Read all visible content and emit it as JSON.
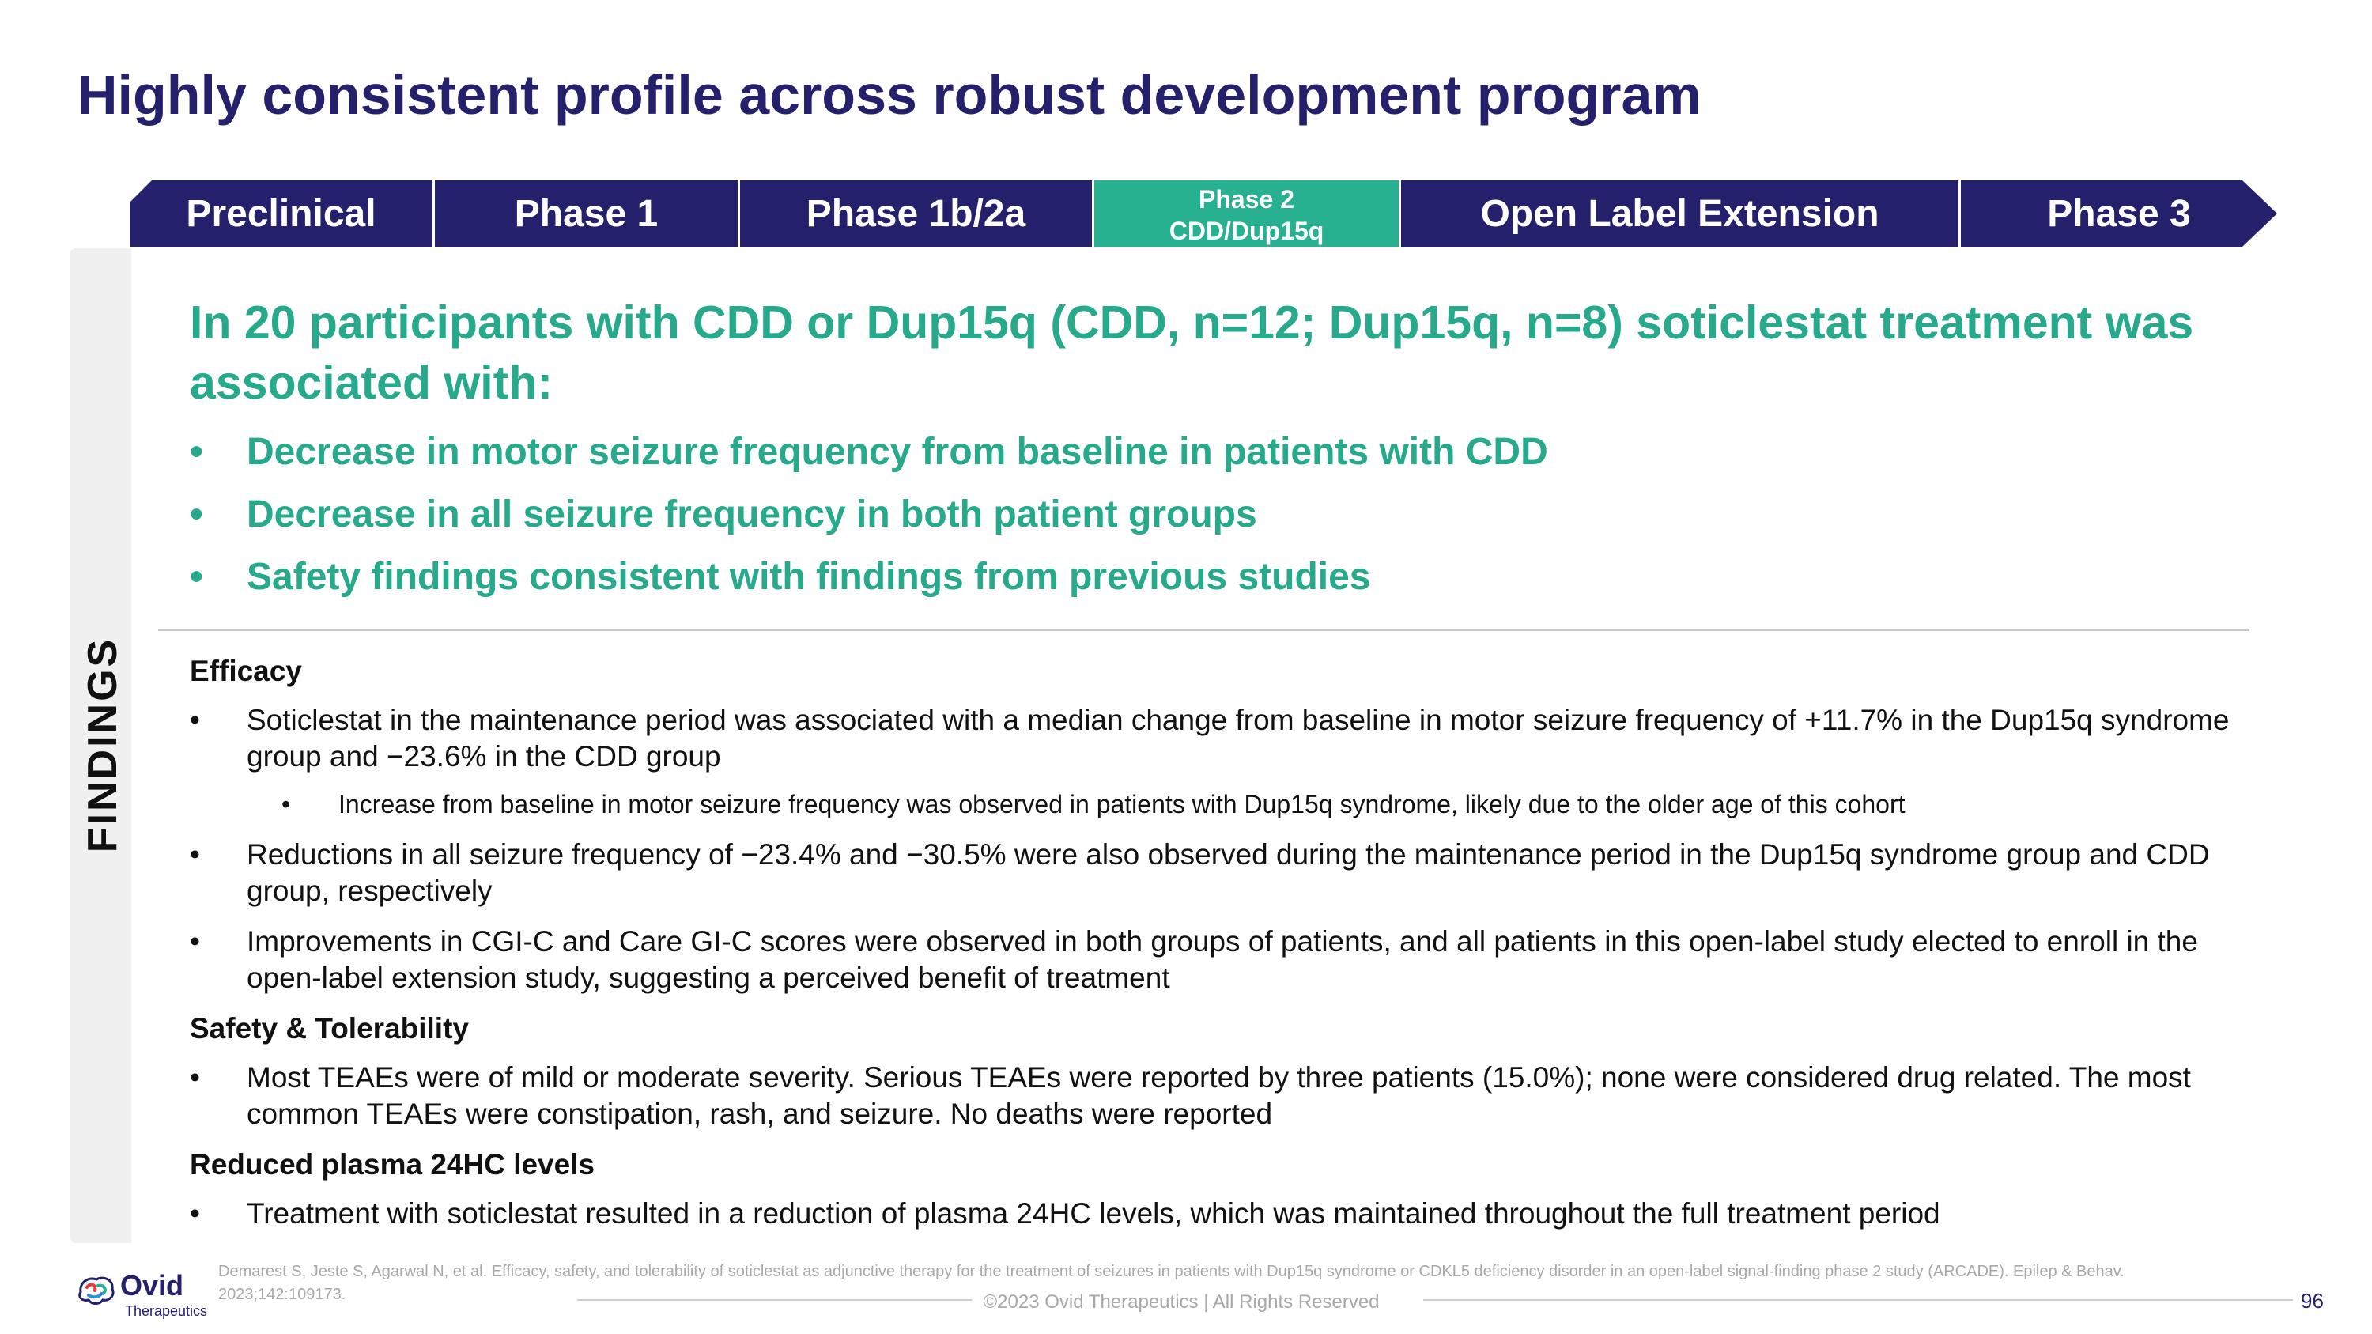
{
  "title": "Highly consistent profile across robust development program",
  "phases": [
    {
      "label": "Preclinical"
    },
    {
      "label": "Phase 1"
    },
    {
      "label": "Phase 1b/2a"
    },
    {
      "label_line1": "Phase 2",
      "label_line2": "CDD/Dup15q",
      "active": true
    },
    {
      "label": "Open Label Extension"
    },
    {
      "label": "Phase 3"
    }
  ],
  "colors": {
    "navy": "#25206b",
    "teal": "#27b190",
    "teal_text": "#27a98c"
  },
  "side_label": "FINDINGS",
  "headline": "In 20 participants with CDD or Dup15q (CDD, n=12; Dup15q, n=8) soticlestat treatment was associated with:",
  "key_findings": [
    "Decrease in motor seizure frequency from baseline in patients with CDD",
    "Decrease in all seizure frequency in both patient groups",
    "Safety findings consistent with findings from previous studies"
  ],
  "sections": {
    "efficacy": {
      "heading": "Efficacy",
      "bullet1": "Soticlestat in the maintenance period was associated with a median change from baseline in motor seizure frequency of +11.7% in the Dup15q syndrome group and −23.6% in the CDD group",
      "sub_bullet": "Increase from baseline in motor seizure frequency was observed in patients with Dup15q syndrome, likely due to the older age of this cohort",
      "bullet2": "Reductions in all seizure frequency of −23.4% and −30.5% were also observed during the maintenance period in the Dup15q syndrome group and CDD group, respectively",
      "bullet3": "Improvements in CGI-C and Care GI-C scores were observed in both groups of patients, and all patients in this open-label study elected to enroll in the open-label extension study, suggesting a perceived benefit of treatment"
    },
    "safety": {
      "heading": "Safety & Tolerability",
      "bullet1": "Most TEAEs were of mild or moderate severity. Serious TEAEs were reported by three patients (15.0%); none were considered drug related. The most common TEAEs were constipation, rash, and seizure. No deaths were reported"
    },
    "plasma": {
      "heading": "Reduced plasma 24HC levels",
      "bullet1": "Treatment with soticlestat resulted in a reduction of plasma 24HC levels, which was maintained throughout the full treatment period"
    }
  },
  "footer": {
    "reference": "Demarest S, Jeste S, Agarwal N, et al. Efficacy, safety, and tolerability of soticlestat as adjunctive therapy for the treatment of seizures in patients with Dup15q syndrome or CDKL5 deficiency disorder in an open-label signal-finding phase 2 study (ARCADE). Epilep & Behav. 2023;142:109173.",
    "copyright": "©2023 Ovid Therapeutics | All Rights Reserved",
    "page_number": "96",
    "logo_text": "Ovid",
    "logo_subtext": "Therapeutics",
    "logo_icon": "ovid-brain-logo-icon"
  }
}
